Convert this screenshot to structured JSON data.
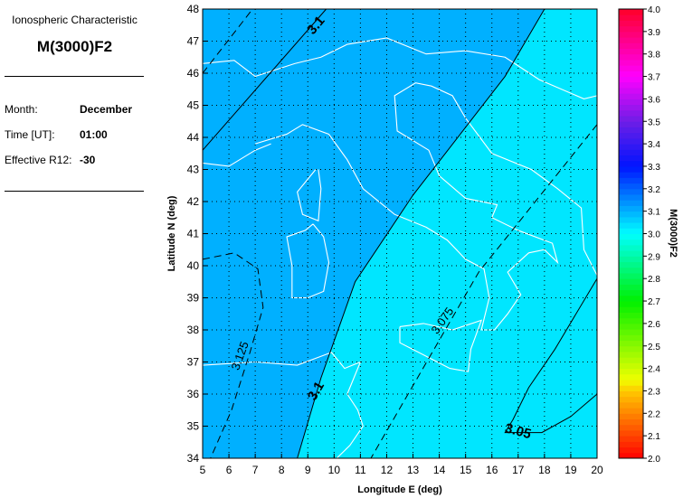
{
  "panel": {
    "subtitle": "Ionospheric Characteristic",
    "title": "M(3000)F2",
    "month_label": "Month:",
    "month": "December",
    "time_label": "Time [UT]:",
    "time": "01:00",
    "r12_label": "Effective R12:",
    "r12": "-30"
  },
  "chart_data": {
    "type": "heatmap",
    "xlabel": "Longitude E (deg)",
    "ylabel": "Latitude N (deg)",
    "xlim": [
      5,
      20
    ],
    "ylim": [
      34,
      48
    ],
    "xticks": [
      5,
      6,
      7,
      8,
      9,
      10,
      11,
      12,
      13,
      14,
      15,
      16,
      17,
      18,
      19,
      20
    ],
    "yticks": [
      34,
      35,
      36,
      37,
      38,
      39,
      40,
      41,
      42,
      43,
      44,
      45,
      46,
      47,
      48
    ],
    "grid": true,
    "colorbar": {
      "label": "M(3000)F2",
      "range": [
        2.0,
        4.0
      ],
      "ticks": [
        "2.0",
        "2.1",
        "2.2",
        "2.3",
        "2.4",
        "2.5",
        "2.6",
        "2.7",
        "2.8",
        "2.9",
        "3.0",
        "3.1",
        "3.2",
        "3.3",
        "3.4",
        "3.5",
        "3.6",
        "3.7",
        "3.8",
        "3.9",
        "4.0"
      ]
    },
    "regions": [
      {
        "range": "3.1-3.15",
        "color": "#00b0ff"
      },
      {
        "range": "3.05-3.1",
        "color": "#00e6ff"
      }
    ],
    "contours": [
      {
        "level": "3.1",
        "style": "solid",
        "points": [
          [
            5,
            43.6
          ],
          [
            9.7,
            48
          ]
        ]
      },
      {
        "level": "3.1",
        "style": "solid",
        "points": [
          [
            18,
            48
          ],
          [
            16.5,
            45.9
          ],
          [
            13,
            42.2
          ],
          [
            10.8,
            39.5
          ],
          [
            9.5,
            36.5
          ],
          [
            8.6,
            34
          ]
        ]
      },
      {
        "level": "3.125",
        "style": "dashed",
        "points": [
          [
            5,
            46
          ],
          [
            6.9,
            48
          ]
        ]
      },
      {
        "level": "3.125",
        "style": "dashed",
        "points": [
          [
            5,
            40.2
          ],
          [
            6.2,
            40.4
          ],
          [
            7.1,
            39.9
          ],
          [
            7.3,
            38.7
          ],
          [
            6.8,
            37.3
          ],
          [
            6.1,
            35.5
          ],
          [
            5.3,
            34
          ]
        ]
      },
      {
        "level": "3.075",
        "style": "dashed",
        "points": [
          [
            20,
            44.4
          ],
          [
            15.5,
            39.8
          ],
          [
            11.4,
            34
          ]
        ]
      },
      {
        "level": "3.05",
        "style": "solid",
        "points": [
          [
            20,
            39.6
          ],
          [
            18.4,
            37.4
          ],
          [
            17.4,
            36.2
          ],
          [
            16.8,
            35.2
          ],
          [
            16.5,
            34.8
          ],
          [
            17.9,
            34.8
          ],
          [
            19,
            35.3
          ],
          [
            20,
            36
          ]
        ]
      }
    ]
  }
}
